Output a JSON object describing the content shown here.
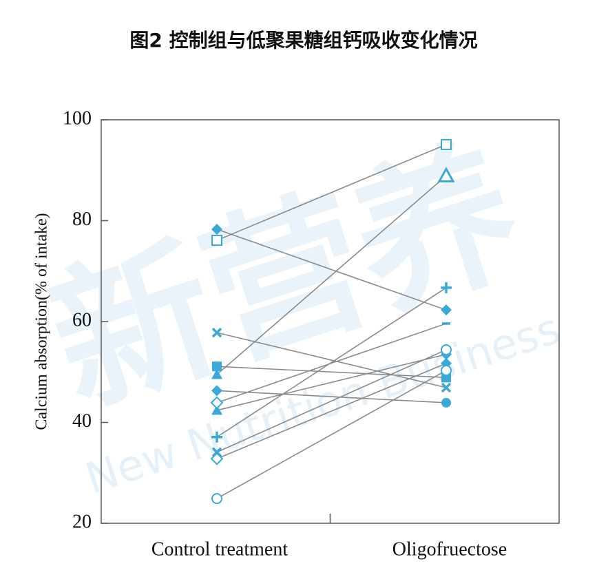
{
  "chart_data": {
    "type": "paired-line",
    "title": "图2 控制组与低聚果糖组钙吸收变化情况",
    "y_label": "Calcium absorption(% of intake)",
    "categories": [
      "Control treatment",
      "Oligofruectose"
    ],
    "ylim": [
      20,
      100
    ],
    "yticks": [
      20,
      40,
      60,
      80,
      100
    ],
    "marker_color": "#3aa8d8",
    "line_color": "#8a8a8a",
    "watermark": [
      "新营养",
      "New Nutrition Business"
    ],
    "series": [
      {
        "markers": [
          "square-open",
          "square-open"
        ],
        "values": [
          76.1,
          95.1
        ]
      },
      {
        "markers": [
          "diamond-filled",
          "diamond-filled"
        ],
        "values": [
          78.3,
          62.3
        ]
      },
      {
        "markers": [
          "triangle-filled",
          "triangle-open"
        ],
        "values": [
          49.5,
          88.9
        ]
      },
      {
        "markers": [
          "triangle-filled",
          "diamond-filled"
        ],
        "values": [
          42.4,
          53.5
        ]
      },
      {
        "markers": [
          "plus",
          "plus"
        ],
        "values": [
          37.1,
          66.7
        ]
      },
      {
        "markers": [
          "x",
          "x"
        ],
        "values": [
          57.8,
          46.9
        ]
      },
      {
        "markers": [
          "square-filled",
          "square-filled"
        ],
        "values": [
          51.1,
          48.9
        ]
      },
      {
        "markers": [
          "diamond-filled",
          "circle-filled"
        ],
        "values": [
          46.3,
          43.9
        ]
      },
      {
        "markers": [
          "diamond-open",
          "minus"
        ],
        "values": [
          43.9,
          59.6
        ]
      },
      {
        "markers": [
          "x",
          "circle-open"
        ],
        "values": [
          34.1,
          54.4
        ]
      },
      {
        "markers": [
          "diamond-open",
          "diamond-filled"
        ],
        "values": [
          32.8,
          51.7
        ]
      },
      {
        "markers": [
          "circle-open",
          "circle-open"
        ],
        "values": [
          24.9,
          50.3
        ]
      }
    ]
  }
}
